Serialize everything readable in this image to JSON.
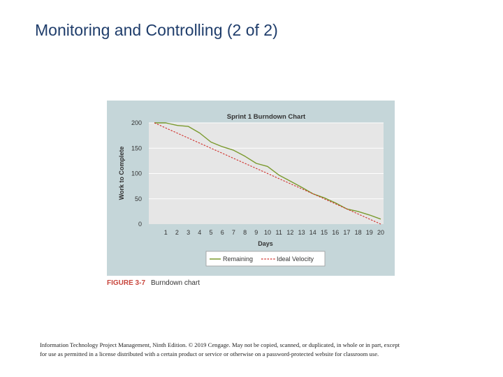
{
  "slide": {
    "title": "Monitoring and Controlling (2 of 2)",
    "footer_line1": "Information Technology Project Management, Ninth Edition. © 2019 Cengage. May not be copied, scanned, or duplicated, in whole or in part, except",
    "footer_line2": "for use as permitted in a license distributed with a certain product or service or otherwise on a password-protected website for classroom use."
  },
  "figure": {
    "label": "FIGURE 3-7",
    "caption": "Burndown chart"
  },
  "colors": {
    "panel_bg": "#c5d6d9",
    "plot_bg": "#e6e6e6",
    "remaining": "#7a9a2e",
    "ideal": "#d0302c"
  },
  "chart_data": {
    "type": "line",
    "title": "Sprint 1 Burndown Chart",
    "xlabel": "Days",
    "ylabel": "Work to Complete",
    "x": [
      0,
      1,
      2,
      3,
      4,
      5,
      6,
      7,
      8,
      9,
      10,
      11,
      12,
      13,
      14,
      15,
      16,
      17,
      18,
      19,
      20
    ],
    "xticks": [
      1,
      2,
      3,
      4,
      5,
      6,
      7,
      8,
      9,
      10,
      11,
      12,
      13,
      14,
      15,
      16,
      17,
      18,
      19,
      20
    ],
    "yticks": [
      0,
      50,
      100,
      150,
      200
    ],
    "xlim": [
      0,
      20
    ],
    "ylim": [
      0,
      200
    ],
    "grid": true,
    "legend": "bottom",
    "series": [
      {
        "name": "Remaining",
        "values": [
          200,
          200,
          195,
          193,
          180,
          162,
          153,
          146,
          134,
          120,
          114,
          97,
          85,
          73,
          60,
          52,
          42,
          30,
          25,
          18,
          10
        ]
      },
      {
        "name": "Ideal Velocity",
        "values": [
          200,
          190,
          180,
          170,
          160,
          150,
          140,
          130,
          120,
          110,
          100,
          90,
          80,
          70,
          60,
          50,
          40,
          30,
          20,
          10,
          0
        ]
      }
    ]
  }
}
